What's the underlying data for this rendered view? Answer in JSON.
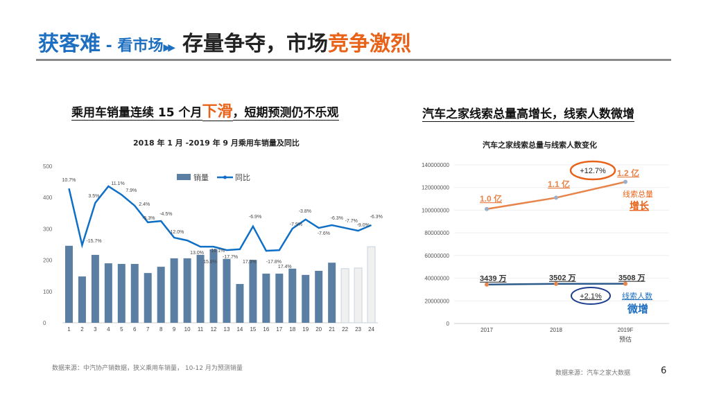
{
  "title": {
    "part1": "获客难",
    "part2": " - 看市场",
    "arrow": "▶▶",
    "part3": "存量争夺，市场",
    "part4": "竞争激烈"
  },
  "left": {
    "heading_pre": "乘用车销量连续 15 个月",
    "heading_em": "下滑",
    "heading_post": "，短期预测仍不乐观",
    "subtitle": "2018 年 1 月 -2019 年 9 月乘用车销量及同比",
    "footnote": "数据来源：中汽协产销数据，狭义乘用车销量， 10-12 月为预测销量"
  },
  "right": {
    "heading": "汽车之家线索总量高增长，线索人数微增",
    "subtitle": "汽车之家线索总量与线索人数变化",
    "footnote": "数据来源：汽车之家大数据"
  },
  "page_number": "6",
  "chart_data": [
    {
      "type": "bar+line",
      "categories": [
        "1",
        "2",
        "3",
        "4",
        "5",
        "6",
        "7",
        "8",
        "9",
        "10",
        "11",
        "12",
        "13",
        "14",
        "15",
        "16",
        "17",
        "18",
        "19",
        "20",
        "21",
        "22",
        "23",
        "24"
      ],
      "ylim": [
        0,
        500
      ],
      "yticks": [
        0,
        100,
        200,
        300,
        400,
        500
      ],
      "legend_position": "top-right",
      "series": [
        {
          "name": "销量",
          "type": "bar",
          "color": "#5b7fa3",
          "forecast_color": "#f0f0f0",
          "forecast_from_index": 21,
          "values": [
            246,
            148,
            217,
            190,
            188,
            188,
            159,
            179,
            206,
            206,
            217,
            235,
            204,
            124,
            201,
            157,
            157,
            173,
            153,
            166,
            192,
            173,
            175,
            243
          ]
        },
        {
          "name": "同比",
          "type": "line",
          "color": "#0f6fc6",
          "values": [
            429,
            248,
            383,
            436,
            409,
            374,
            321,
            325,
            272,
            263,
            243,
            243,
            232,
            235,
            308,
            230,
            232,
            301,
            330,
            303,
            312,
            303,
            294,
            312
          ],
          "labels": [
            "10.7%",
            "-15.7%",
            "3.5%",
            "11.1%",
            "7.9%",
            "2.4%",
            "-5.3%",
            "-4.5%",
            "-12.0%",
            "13.0%",
            "15.8%",
            "-16.1%",
            "-17.7%",
            "17.3%",
            "-6.9%",
            "-17.8%",
            "17.4%",
            "-7.9%",
            "-3.8%",
            "-7.6%",
            "-6.3%",
            "-7.7%",
            "-9.0%",
            "-6.3%"
          ]
        }
      ]
    },
    {
      "type": "line",
      "categories": [
        "2017",
        "2018",
        "2019F"
      ],
      "x_sublabel": "预估",
      "ylim": [
        0,
        140000000
      ],
      "yticks": [
        "0",
        "20000000",
        "40000000",
        "60000000",
        "80000000",
        "100000000",
        "120000000",
        "140000000"
      ],
      "grid": true,
      "series": [
        {
          "color": "#e8834a",
          "values": [
            101000000,
            111000000,
            125000000
          ],
          "labels": [
            "1.0 亿",
            "1.1 亿",
            "1.2 亿"
          ]
        },
        {
          "color": "#2c5a8a",
          "values": [
            34390000,
            35020000,
            35080000
          ],
          "labels": [
            "3439 万",
            "3502 万",
            "3508 万"
          ]
        }
      ],
      "annotations": {
        "growth_total": "+12.7%",
        "growth_people": "+2.1%",
        "total_label1": "线索总量",
        "total_label2": "增长",
        "people_label1": "线索人数",
        "people_label2": "微增",
        "total_color": "#e8631a",
        "people_color": "#1f6fc0"
      }
    }
  ]
}
